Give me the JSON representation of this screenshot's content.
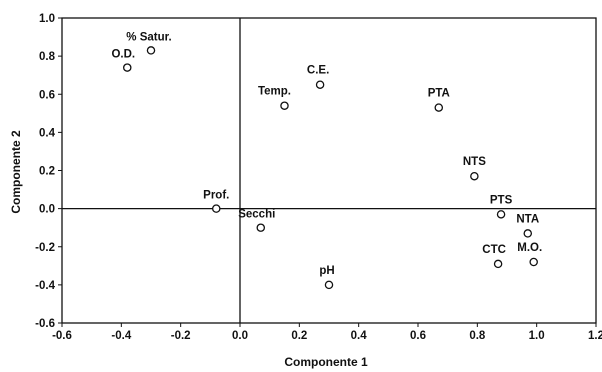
{
  "chart_data": {
    "type": "scatter",
    "title": "",
    "xlabel": "Componente 1",
    "ylabel": "Componente 2",
    "xlim": [
      -0.6,
      1.2
    ],
    "ylim": [
      -0.6,
      1.0
    ],
    "x_ticks": [
      "-0.6",
      "-0.4",
      "-0.2",
      "0.0",
      "0.2",
      "0.4",
      "0.6",
      "0.8",
      "1.0",
      "1.2"
    ],
    "y_ticks": [
      "1.0",
      "0.8",
      "0.6",
      "0.4",
      "0.2",
      "0.0",
      "-0.2",
      "-0.4",
      "-0.6"
    ],
    "zero_lines": true,
    "grid": false,
    "points": [
      {
        "label": "% Satur.",
        "x": -0.3,
        "y": 0.83
      },
      {
        "label": "O.D.",
        "x": -0.38,
        "y": 0.74
      },
      {
        "label": "C.E.",
        "x": 0.27,
        "y": 0.65
      },
      {
        "label": "Temp.",
        "x": 0.15,
        "y": 0.54
      },
      {
        "label": "PTA",
        "x": 0.67,
        "y": 0.53
      },
      {
        "label": "NTS",
        "x": 0.79,
        "y": 0.17
      },
      {
        "label": "Prof.",
        "x": -0.08,
        "y": 0.0
      },
      {
        "label": "PTS",
        "x": 0.88,
        "y": -0.03
      },
      {
        "label": "Secchi",
        "x": 0.07,
        "y": -0.1
      },
      {
        "label": "NTA",
        "x": 0.97,
        "y": -0.13
      },
      {
        "label": "CTC",
        "x": 0.87,
        "y": -0.29
      },
      {
        "label": "M.O.",
        "x": 0.99,
        "y": -0.28
      },
      {
        "label": "pH",
        "x": 0.3,
        "y": -0.4
      }
    ]
  }
}
